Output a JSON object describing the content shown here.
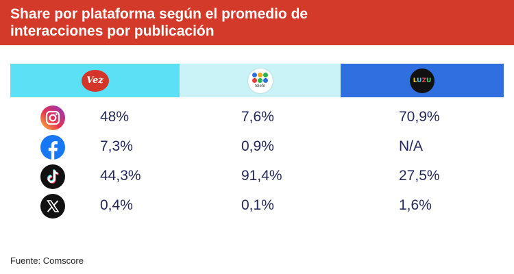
{
  "title": "Share por plataforma según el promedio de\ninteracciones por publicación",
  "colors": {
    "title_bg": "#d43a2a",
    "header_vez": "#5be0f5",
    "header_telefe": "#c9f3f7",
    "header_luzu": "#2f6fe0",
    "value_text": "#232858"
  },
  "chart_data": {
    "type": "table",
    "columns": [
      {
        "channel": "Vez",
        "logo_text": "Vez"
      },
      {
        "channel": "Telefe",
        "logo_text": "telefe"
      },
      {
        "channel": "Luzu",
        "logo_text": "LUZU"
      }
    ],
    "rows": [
      {
        "platform": "instagram",
        "icon": "instagram-icon",
        "values": [
          "48%",
          "7,6%",
          "70,9%"
        ]
      },
      {
        "platform": "facebook",
        "icon": "facebook-icon",
        "values": [
          "7,3%",
          "0,9%",
          "N/A"
        ]
      },
      {
        "platform": "tiktok",
        "icon": "tiktok-icon",
        "values": [
          "44,3%",
          "91,4%",
          "27,5%"
        ]
      },
      {
        "platform": "x",
        "icon": "x-icon",
        "values": [
          "0,4%",
          "0,1%",
          "1,6%"
        ]
      }
    ]
  },
  "source": "Fuente: Comscore"
}
